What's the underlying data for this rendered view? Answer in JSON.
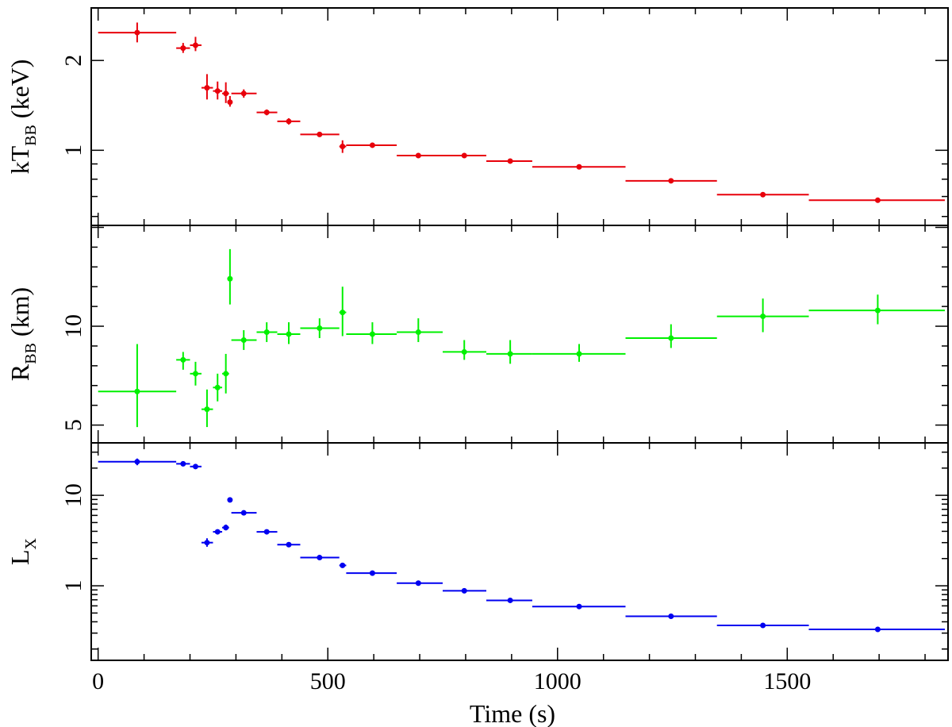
{
  "chart_data": {
    "type": "scatter",
    "shared_x": {
      "label": "Time (s)",
      "range": [
        -15,
        1850
      ],
      "ticks": [
        0,
        500,
        1000,
        1500
      ]
    },
    "panels": [
      {
        "id": "kT",
        "ylabel_main": "kT",
        "ylabel_sub": "BB",
        "ylabel_unit": " (keV)",
        "yscale": "log",
        "ylim": [
          0.56,
          3.0
        ],
        "yticks": [
          1,
          2
        ],
        "yticklabels": [
          "1",
          "2"
        ],
        "color": "#e8000b",
        "points": [
          {
            "x": 85,
            "xlo": 0,
            "xhi": 170,
            "y": 2.48,
            "ylo": 2.3,
            "yhi": 2.68
          },
          {
            "x": 185,
            "xlo": 170,
            "xhi": 200,
            "y": 2.2,
            "ylo": 2.12,
            "yhi": 2.29
          },
          {
            "x": 212,
            "xlo": 200,
            "xhi": 225,
            "y": 2.25,
            "ylo": 2.15,
            "yhi": 2.4
          },
          {
            "x": 237,
            "xlo": 225,
            "xhi": 250,
            "y": 1.62,
            "ylo": 1.48,
            "yhi": 1.8
          },
          {
            "x": 260,
            "xlo": 250,
            "xhi": 270,
            "y": 1.58,
            "ylo": 1.48,
            "yhi": 1.7
          },
          {
            "x": 278,
            "xlo": 270,
            "xhi": 285,
            "y": 1.55,
            "ylo": 1.44,
            "yhi": 1.69
          },
          {
            "x": 287,
            "xlo": 285,
            "xhi": 290,
            "y": 1.45,
            "ylo": 1.4,
            "yhi": 1.52
          },
          {
            "x": 317,
            "xlo": 290,
            "xhi": 345,
            "y": 1.55,
            "ylo": 1.5,
            "yhi": 1.6
          },
          {
            "x": 367,
            "xlo": 345,
            "xhi": 390,
            "y": 1.34,
            "ylo": 1.31,
            "yhi": 1.37
          },
          {
            "x": 415,
            "xlo": 390,
            "xhi": 440,
            "y": 1.25,
            "ylo": 1.22,
            "yhi": 1.28
          },
          {
            "x": 482,
            "xlo": 440,
            "xhi": 525,
            "y": 1.13,
            "ylo": 1.11,
            "yhi": 1.15
          },
          {
            "x": 532,
            "xlo": 525,
            "xhi": 540,
            "y": 1.03,
            "ylo": 0.98,
            "yhi": 1.08
          },
          {
            "x": 597,
            "xlo": 540,
            "xhi": 650,
            "y": 1.04,
            "ylo": 1.02,
            "yhi": 1.06
          },
          {
            "x": 697,
            "xlo": 650,
            "xhi": 750,
            "y": 0.96,
            "ylo": 0.945,
            "yhi": 0.975
          },
          {
            "x": 797,
            "xlo": 750,
            "xhi": 845,
            "y": 0.96,
            "ylo": 0.945,
            "yhi": 0.975
          },
          {
            "x": 897,
            "xlo": 845,
            "xhi": 945,
            "y": 0.92,
            "ylo": 0.905,
            "yhi": 0.935
          },
          {
            "x": 1047,
            "xlo": 945,
            "xhi": 1148,
            "y": 0.88,
            "ylo": 0.87,
            "yhi": 0.89
          },
          {
            "x": 1247,
            "xlo": 1148,
            "xhi": 1347,
            "y": 0.79,
            "ylo": 0.78,
            "yhi": 0.8
          },
          {
            "x": 1447,
            "xlo": 1347,
            "xhi": 1547,
            "y": 0.71,
            "ylo": 0.7,
            "yhi": 0.72
          },
          {
            "x": 1697,
            "xlo": 1547,
            "xhi": 1843,
            "y": 0.68,
            "ylo": 0.67,
            "yhi": 0.69
          }
        ]
      },
      {
        "id": "R",
        "ylabel_main": "R",
        "ylabel_sub": "BB",
        "ylabel_unit": " (km)",
        "yscale": "linear",
        "ylim": [
          4.1,
          15.1
        ],
        "yticks": [
          5,
          10
        ],
        "yticklabels": [
          "5",
          "10"
        ],
        "color": "#00f000",
        "points": [
          {
            "x": 85,
            "xlo": 0,
            "xhi": 170,
            "y": 6.7,
            "ylo": 4.9,
            "yhi": 9.1
          },
          {
            "x": 185,
            "xlo": 170,
            "xhi": 200,
            "y": 8.3,
            "ylo": 7.8,
            "yhi": 8.7
          },
          {
            "x": 212,
            "xlo": 200,
            "xhi": 225,
            "y": 7.6,
            "ylo": 7.0,
            "yhi": 8.2
          },
          {
            "x": 237,
            "xlo": 225,
            "xhi": 250,
            "y": 5.8,
            "ylo": 4.9,
            "yhi": 6.8
          },
          {
            "x": 260,
            "xlo": 250,
            "xhi": 270,
            "y": 6.9,
            "ylo": 6.2,
            "yhi": 7.6
          },
          {
            "x": 278,
            "xlo": 270,
            "xhi": 285,
            "y": 7.6,
            "ylo": 6.6,
            "yhi": 8.6
          },
          {
            "x": 287,
            "xlo": 285,
            "xhi": 290,
            "y": 12.4,
            "ylo": 11.1,
            "yhi": 13.9
          },
          {
            "x": 317,
            "xlo": 290,
            "xhi": 345,
            "y": 9.3,
            "ylo": 8.8,
            "yhi": 9.8
          },
          {
            "x": 367,
            "xlo": 345,
            "xhi": 390,
            "y": 9.7,
            "ylo": 9.2,
            "yhi": 10.2
          },
          {
            "x": 415,
            "xlo": 390,
            "xhi": 440,
            "y": 9.6,
            "ylo": 9.1,
            "yhi": 10.2
          },
          {
            "x": 482,
            "xlo": 440,
            "xhi": 525,
            "y": 9.9,
            "ylo": 9.4,
            "yhi": 10.4
          },
          {
            "x": 532,
            "xlo": 525,
            "xhi": 540,
            "y": 10.7,
            "ylo": 9.5,
            "yhi": 12.0
          },
          {
            "x": 597,
            "xlo": 540,
            "xhi": 650,
            "y": 9.6,
            "ylo": 9.1,
            "yhi": 10.2
          },
          {
            "x": 697,
            "xlo": 650,
            "xhi": 750,
            "y": 9.7,
            "ylo": 9.2,
            "yhi": 10.4
          },
          {
            "x": 797,
            "xlo": 750,
            "xhi": 845,
            "y": 8.7,
            "ylo": 8.3,
            "yhi": 9.3
          },
          {
            "x": 897,
            "xlo": 845,
            "xhi": 945,
            "y": 8.6,
            "ylo": 8.1,
            "yhi": 9.3
          },
          {
            "x": 1047,
            "xlo": 945,
            "xhi": 1148,
            "y": 8.6,
            "ylo": 8.2,
            "yhi": 9.1
          },
          {
            "x": 1247,
            "xlo": 1148,
            "xhi": 1347,
            "y": 9.4,
            "ylo": 8.9,
            "yhi": 10.1
          },
          {
            "x": 1447,
            "xlo": 1347,
            "xhi": 1547,
            "y": 10.5,
            "ylo": 9.7,
            "yhi": 11.4
          },
          {
            "x": 1697,
            "xlo": 1547,
            "xhi": 1843,
            "y": 10.8,
            "ylo": 10.1,
            "yhi": 11.6
          }
        ]
      },
      {
        "id": "Lx",
        "ylabel_main": "L",
        "ylabel_sub": "X",
        "ylabel_unit": "",
        "yscale": "log",
        "ylim": [
          0.15,
          38
        ],
        "yticks": [
          1,
          10
        ],
        "yticklabels": [
          "1",
          "10"
        ],
        "color": "#0000f0",
        "points": [
          {
            "x": 85,
            "xlo": 0,
            "xhi": 170,
            "y": 23.5,
            "ylo": 21.5,
            "yhi": 25.5
          },
          {
            "x": 185,
            "xlo": 170,
            "xhi": 200,
            "y": 22.3,
            "ylo": 21.6,
            "yhi": 23.0
          },
          {
            "x": 212,
            "xlo": 200,
            "xhi": 225,
            "y": 20.8,
            "ylo": 20.1,
            "yhi": 21.5
          },
          {
            "x": 237,
            "xlo": 225,
            "xhi": 250,
            "y": 3.0,
            "ylo": 2.7,
            "yhi": 3.35
          },
          {
            "x": 260,
            "xlo": 250,
            "xhi": 270,
            "y": 3.95,
            "ylo": 3.75,
            "yhi": 4.15
          },
          {
            "x": 278,
            "xlo": 270,
            "xhi": 285,
            "y": 4.4,
            "ylo": 4.1,
            "yhi": 4.75
          },
          {
            "x": 287,
            "xlo": 285,
            "xhi": 290,
            "y": 8.9,
            "ylo": 8.4,
            "yhi": 9.5
          },
          {
            "x": 317,
            "xlo": 290,
            "xhi": 345,
            "y": 6.4,
            "ylo": 6.25,
            "yhi": 6.55
          },
          {
            "x": 367,
            "xlo": 345,
            "xhi": 390,
            "y": 3.95,
            "ylo": 3.85,
            "yhi": 4.05
          },
          {
            "x": 415,
            "xlo": 390,
            "xhi": 440,
            "y": 2.85,
            "ylo": 2.78,
            "yhi": 2.92
          },
          {
            "x": 482,
            "xlo": 440,
            "xhi": 525,
            "y": 2.05,
            "ylo": 2.0,
            "yhi": 2.1
          },
          {
            "x": 532,
            "xlo": 525,
            "xhi": 540,
            "y": 1.68,
            "ylo": 1.58,
            "yhi": 1.78
          },
          {
            "x": 597,
            "xlo": 540,
            "xhi": 650,
            "y": 1.38,
            "ylo": 1.35,
            "yhi": 1.41
          },
          {
            "x": 697,
            "xlo": 650,
            "xhi": 750,
            "y": 1.07,
            "ylo": 1.05,
            "yhi": 1.09
          },
          {
            "x": 797,
            "xlo": 750,
            "xhi": 845,
            "y": 0.88,
            "ylo": 0.865,
            "yhi": 0.895
          },
          {
            "x": 897,
            "xlo": 845,
            "xhi": 945,
            "y": 0.69,
            "ylo": 0.68,
            "yhi": 0.7
          },
          {
            "x": 1047,
            "xlo": 945,
            "xhi": 1148,
            "y": 0.59,
            "ylo": 0.58,
            "yhi": 0.6
          },
          {
            "x": 1247,
            "xlo": 1148,
            "xhi": 1347,
            "y": 0.46,
            "ylo": 0.453,
            "yhi": 0.467
          },
          {
            "x": 1447,
            "xlo": 1347,
            "xhi": 1547,
            "y": 0.365,
            "ylo": 0.358,
            "yhi": 0.372
          },
          {
            "x": 1697,
            "xlo": 1547,
            "xhi": 1843,
            "y": 0.33,
            "ylo": 0.324,
            "yhi": 0.336
          }
        ]
      }
    ]
  }
}
